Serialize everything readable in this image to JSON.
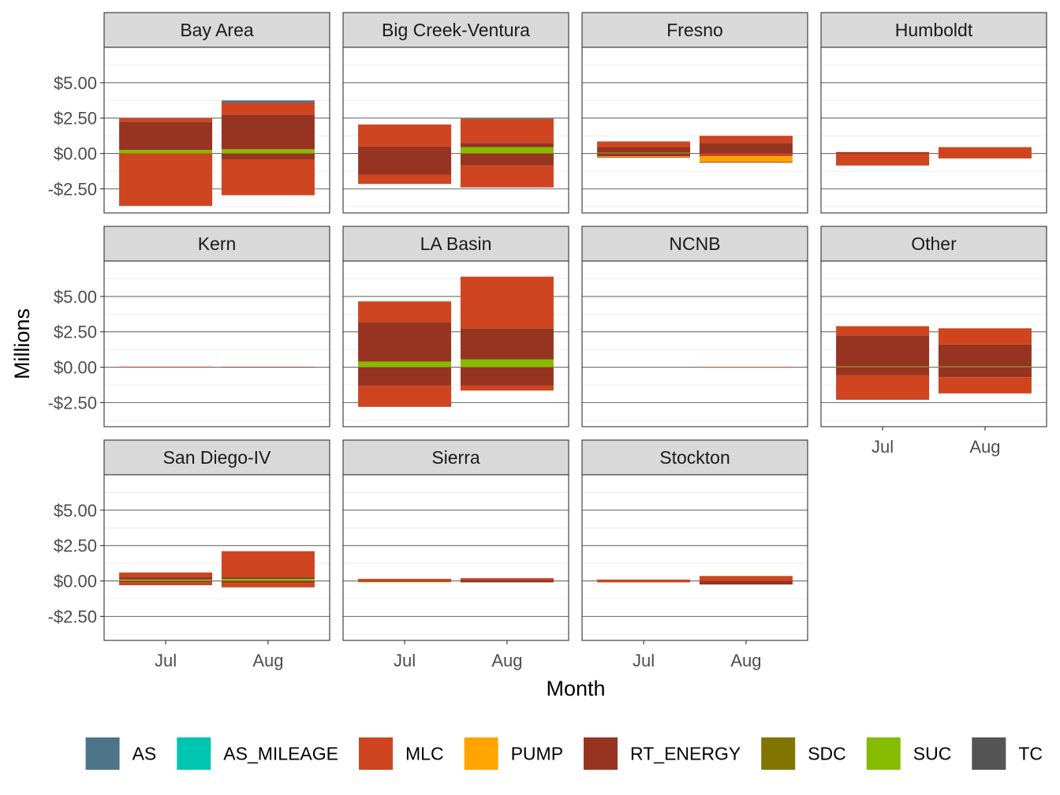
{
  "chart_data": {
    "type": "bar",
    "layout": "facet-wrap",
    "ylabel": "Millions",
    "xlabel": "Month",
    "categories": [
      "Jul",
      "Aug"
    ],
    "ylim": [
      -4.2,
      7.5
    ],
    "y_ticks": [
      -2.5,
      0,
      2.5,
      5
    ],
    "y_tick_labels": [
      "-$2.50",
      "$0.00",
      "$2.50",
      "$5.00"
    ],
    "legend_position": "bottom",
    "series_order": [
      "AS",
      "AS_MILEAGE",
      "MLC",
      "PUMP",
      "RT_ENERGY",
      "SDC",
      "SUC",
      "TC"
    ],
    "colors": {
      "AS": "#4E7489",
      "AS_MILEAGE": "#00C5B1",
      "MLC": "#CE4520",
      "PUMP": "#FFA400",
      "RT_ENERGY": "#963421",
      "SDC": "#827400",
      "SUC": "#85BB00",
      "TC": "#555555"
    },
    "panels": [
      {
        "name": "Bay Area",
        "months": [
          {
            "month": "Jul",
            "positive": [
              {
                "s": "SUC",
                "v": 0.25
              },
              {
                "s": "RT_ENERGY",
                "v": 2.0
              },
              {
                "s": "MLC",
                "v": 0.25
              }
            ],
            "negative": [
              {
                "s": "MLC",
                "v": -3.7
              }
            ]
          },
          {
            "month": "Aug",
            "positive": [
              {
                "s": "SUC",
                "v": 0.3
              },
              {
                "s": "RT_ENERGY",
                "v": 2.45
              },
              {
                "s": "MLC",
                "v": 0.85
              },
              {
                "s": "AS",
                "v": 0.15
              }
            ],
            "negative": [
              {
                "s": "RT_ENERGY",
                "v": -0.45
              },
              {
                "s": "MLC",
                "v": -2.5
              }
            ]
          }
        ]
      },
      {
        "name": "Big Creek-Ventura",
        "months": [
          {
            "month": "Jul",
            "positive": [
              {
                "s": "RT_ENERGY",
                "v": 0.5
              },
              {
                "s": "MLC",
                "v": 1.55
              }
            ],
            "negative": [
              {
                "s": "RT_ENERGY",
                "v": -1.5
              },
              {
                "s": "MLC",
                "v": -0.65
              }
            ]
          },
          {
            "month": "Aug",
            "positive": [
              {
                "s": "SUC",
                "v": 0.45
              },
              {
                "s": "RT_ENERGY",
                "v": 0.3
              },
              {
                "s": "MLC",
                "v": 1.7
              },
              {
                "s": "AS",
                "v": 0.05
              }
            ],
            "negative": [
              {
                "s": "RT_ENERGY",
                "v": -0.85
              },
              {
                "s": "MLC",
                "v": -1.55
              }
            ]
          }
        ]
      },
      {
        "name": "Fresno",
        "months": [
          {
            "month": "Jul",
            "positive": [
              {
                "s": "SUC",
                "v": 0.05
              },
              {
                "s": "RT_ENERGY",
                "v": 0.4
              },
              {
                "s": "MLC",
                "v": 0.4
              }
            ],
            "negative": [
              {
                "s": "RT_ENERGY",
                "v": -0.2
              },
              {
                "s": "PUMP",
                "v": -0.05
              },
              {
                "s": "MLC",
                "v": -0.05
              }
            ]
          },
          {
            "month": "Aug",
            "positive": [
              {
                "s": "RT_ENERGY",
                "v": 0.75
              },
              {
                "s": "MLC",
                "v": 0.5
              }
            ],
            "negative": [
              {
                "s": "MLC",
                "v": -0.2
              },
              {
                "s": "PUMP",
                "v": -0.4
              },
              {
                "s": "RT_ENERGY",
                "v": -0.05
              }
            ]
          }
        ]
      },
      {
        "name": "Humboldt",
        "months": [
          {
            "month": "Jul",
            "positive": [
              {
                "s": "RT_ENERGY",
                "v": 0.1
              }
            ],
            "negative": [
              {
                "s": "MLC",
                "v": -0.85
              }
            ]
          },
          {
            "month": "Aug",
            "positive": [
              {
                "s": "MLC",
                "v": 0.45
              }
            ],
            "negative": [
              {
                "s": "MLC",
                "v": -0.35
              }
            ]
          }
        ]
      },
      {
        "name": "Kern",
        "months": [
          {
            "month": "Jul",
            "positive": [
              {
                "s": "MLC",
                "v": 0.04
              }
            ],
            "negative": []
          },
          {
            "month": "Aug",
            "positive": [
              {
                "s": "RT_ENERGY",
                "v": 0.02
              }
            ],
            "negative": []
          }
        ]
      },
      {
        "name": "LA Basin",
        "months": [
          {
            "month": "Jul",
            "positive": [
              {
                "s": "SUC",
                "v": 0.4
              },
              {
                "s": "RT_ENERGY",
                "v": 2.8
              },
              {
                "s": "MLC",
                "v": 1.45
              }
            ],
            "negative": [
              {
                "s": "RT_ENERGY",
                "v": -1.3
              },
              {
                "s": "MLC",
                "v": -1.5
              }
            ]
          },
          {
            "month": "Aug",
            "positive": [
              {
                "s": "SUC",
                "v": 0.55
              },
              {
                "s": "RT_ENERGY",
                "v": 2.2
              },
              {
                "s": "MLC",
                "v": 3.65
              }
            ],
            "negative": [
              {
                "s": "RT_ENERGY",
                "v": -1.3
              },
              {
                "s": "MLC",
                "v": -0.35
              }
            ]
          }
        ]
      },
      {
        "name": "NCNB",
        "months": [
          {
            "month": "Jul",
            "positive": [],
            "negative": []
          },
          {
            "month": "Aug",
            "positive": [
              {
                "s": "MLC",
                "v": 0.02
              }
            ],
            "negative": []
          }
        ]
      },
      {
        "name": "Other",
        "months": [
          {
            "month": "Jul",
            "positive": [
              {
                "s": "SUC",
                "v": 0.05
              },
              {
                "s": "RT_ENERGY",
                "v": 2.2
              },
              {
                "s": "MLC",
                "v": 0.65
              }
            ],
            "negative": [
              {
                "s": "RT_ENERGY",
                "v": -0.55
              },
              {
                "s": "MLC",
                "v": -1.75
              }
            ]
          },
          {
            "month": "Aug",
            "positive": [
              {
                "s": "SUC",
                "v": 0.05
              },
              {
                "s": "RT_ENERGY",
                "v": 1.55
              },
              {
                "s": "MLC",
                "v": 1.15
              }
            ],
            "negative": [
              {
                "s": "RT_ENERGY",
                "v": -0.7
              },
              {
                "s": "MLC",
                "v": -1.15
              }
            ]
          }
        ]
      },
      {
        "name": "San Diego-IV",
        "months": [
          {
            "month": "Jul",
            "positive": [
              {
                "s": "SUC",
                "v": 0.1
              },
              {
                "s": "RT_ENERGY",
                "v": 0.2
              },
              {
                "s": "MLC",
                "v": 0.3
              }
            ],
            "negative": [
              {
                "s": "RT_ENERGY",
                "v": -0.1
              },
              {
                "s": "MLC",
                "v": -0.2
              }
            ]
          },
          {
            "month": "Aug",
            "positive": [
              {
                "s": "SUC",
                "v": 0.15
              },
              {
                "s": "RT_ENERGY",
                "v": 0.15
              },
              {
                "s": "MLC",
                "v": 1.8
              }
            ],
            "negative": [
              {
                "s": "RT_ENERGY",
                "v": -0.15
              },
              {
                "s": "MLC",
                "v": -0.3
              }
            ]
          }
        ]
      },
      {
        "name": "Sierra",
        "months": [
          {
            "month": "Jul",
            "positive": [
              {
                "s": "RT_ENERGY",
                "v": 0.05
              },
              {
                "s": "MLC",
                "v": 0.1
              }
            ],
            "negative": [
              {
                "s": "RT_ENERGY",
                "v": -0.05
              },
              {
                "s": "PUMP",
                "v": -0.05
              }
            ]
          },
          {
            "month": "Aug",
            "positive": [
              {
                "s": "RT_ENERGY",
                "v": 0.1
              },
              {
                "s": "MLC",
                "v": 0.1
              }
            ],
            "negative": [
              {
                "s": "RT_ENERGY",
                "v": -0.1
              }
            ]
          }
        ]
      },
      {
        "name": "Stockton",
        "months": [
          {
            "month": "Jul",
            "positive": [
              {
                "s": "MLC",
                "v": 0.1
              }
            ],
            "negative": [
              {
                "s": "MLC",
                "v": -0.1
              }
            ]
          },
          {
            "month": "Aug",
            "positive": [
              {
                "s": "MLC",
                "v": 0.35
              }
            ],
            "negative": [
              {
                "s": "RT_ENERGY",
                "v": -0.25
              }
            ]
          }
        ]
      }
    ]
  }
}
